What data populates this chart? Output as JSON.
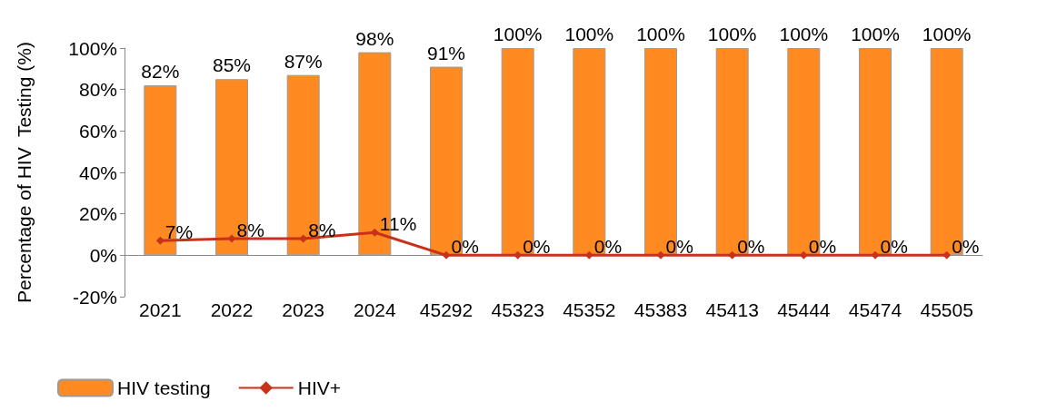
{
  "chart_data": {
    "type": "bar",
    "ylabel": "Percentage of HIV  Testing (%)",
    "categories": [
      "2021",
      "2022",
      "2023",
      "2024",
      "45292",
      "45323",
      "45352",
      "45383",
      "45413",
      "45444",
      "45474",
      "45505"
    ],
    "series": [
      {
        "name": "HIV testing",
        "color": "#ff8a22",
        "values": [
          82,
          85,
          87,
          98,
          91,
          100,
          100,
          100,
          100,
          100,
          100,
          100
        ],
        "value_labels": [
          "82%",
          "85%",
          "87%",
          "98%",
          "91%",
          "100%",
          "100%",
          "100%",
          "100%",
          "100%",
          "100%",
          "100%"
        ]
      },
      {
        "name": "HIV+",
        "type": "line",
        "color": "#c8311a",
        "marker": "diamond",
        "values": [
          7,
          8,
          8,
          11,
          0,
          0,
          0,
          0,
          0,
          0,
          0,
          0
        ],
        "value_labels": [
          "7%",
          "8%",
          "8%",
          "11%",
          "0%",
          "0%",
          "0%",
          "0%",
          "0%",
          "0%",
          "0%",
          "0%"
        ]
      }
    ],
    "ylim": [
      -20,
      100
    ],
    "yticks": [
      {
        "value": -20,
        "label": "-20%"
      },
      {
        "value": 0,
        "label": "0%"
      },
      {
        "value": 20,
        "label": "20%"
      },
      {
        "value": 40,
        "label": "40%"
      },
      {
        "value": 60,
        "label": "60%"
      },
      {
        "value": 80,
        "label": "80%"
      },
      {
        "value": 100,
        "label": "100%"
      }
    ],
    "grid": false,
    "legend": "bottom left"
  }
}
